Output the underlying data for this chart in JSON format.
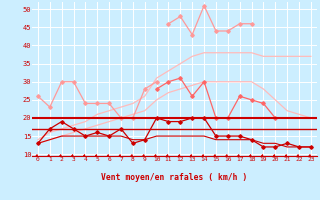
{
  "bg_color": "#cceeff",
  "grid_color": "#ffffff",
  "tick_color": "#cc0000",
  "xlabel": "Vent moyen/en rafales ( km/h )",
  "xlim": [
    -0.5,
    23.5
  ],
  "ylim": [
    9.5,
    52
  ],
  "yticks": [
    10,
    15,
    20,
    25,
    30,
    35,
    40,
    45,
    50
  ],
  "xticks": [
    0,
    1,
    2,
    3,
    4,
    5,
    6,
    7,
    8,
    9,
    10,
    11,
    12,
    13,
    14,
    15,
    16,
    17,
    18,
    19,
    20,
    21,
    22,
    23
  ],
  "rafales_top_x": [
    11,
    12,
    13,
    14,
    15,
    16,
    17,
    18
  ],
  "rafales_top_y": [
    46,
    48,
    43,
    51,
    44,
    44,
    46,
    46
  ],
  "rafales_top_color": "#ff9999",
  "rul_x": [
    0,
    1,
    2,
    3,
    4,
    5,
    6,
    7,
    8,
    9,
    10
  ],
  "rul_y": [
    26,
    23,
    30,
    30,
    24,
    24,
    24,
    20,
    20,
    28,
    30
  ],
  "rul_color": "#ff9999",
  "trend_up_y": [
    14,
    16,
    17,
    18,
    19,
    21,
    22,
    23,
    24,
    26,
    31,
    33,
    35,
    37,
    38,
    38,
    38,
    38,
    38,
    37,
    37,
    37,
    37,
    37
  ],
  "trend_low_y": [
    13,
    14,
    15,
    16,
    17,
    18,
    19,
    20,
    21,
    22,
    25,
    27,
    28,
    29,
    30,
    30,
    30,
    30,
    30,
    28,
    25,
    22,
    21,
    20
  ],
  "trend_color": "#ffbbbb",
  "mid_x": [
    10,
    11,
    12,
    13,
    14,
    15,
    16,
    17,
    18,
    19,
    20
  ],
  "mid_y": [
    28,
    30,
    31,
    26,
    30,
    20,
    20,
    26,
    25,
    24,
    20
  ],
  "mid_color": "#ff6666",
  "flat20_y": 20,
  "flat17_y": 17,
  "flat_color": "#cc0000",
  "main_x": [
    0,
    1,
    2,
    3,
    4,
    5,
    6,
    7,
    8,
    9,
    10,
    11,
    12,
    13,
    14,
    15,
    16,
    17,
    18,
    19,
    20,
    21,
    22,
    23
  ],
  "main_y": [
    13,
    17,
    19,
    17,
    15,
    16,
    15,
    17,
    13,
    14,
    20,
    19,
    19,
    20,
    20,
    15,
    15,
    15,
    14,
    12,
    12,
    13,
    12,
    12
  ],
  "main_color": "#cc0000",
  "lower_y": [
    13,
    14,
    15,
    15,
    15,
    15,
    15,
    15,
    14,
    14,
    15,
    15,
    15,
    15,
    15,
    14,
    14,
    14,
    14,
    13,
    13,
    12,
    12,
    12
  ],
  "lower_color": "#cc0000"
}
